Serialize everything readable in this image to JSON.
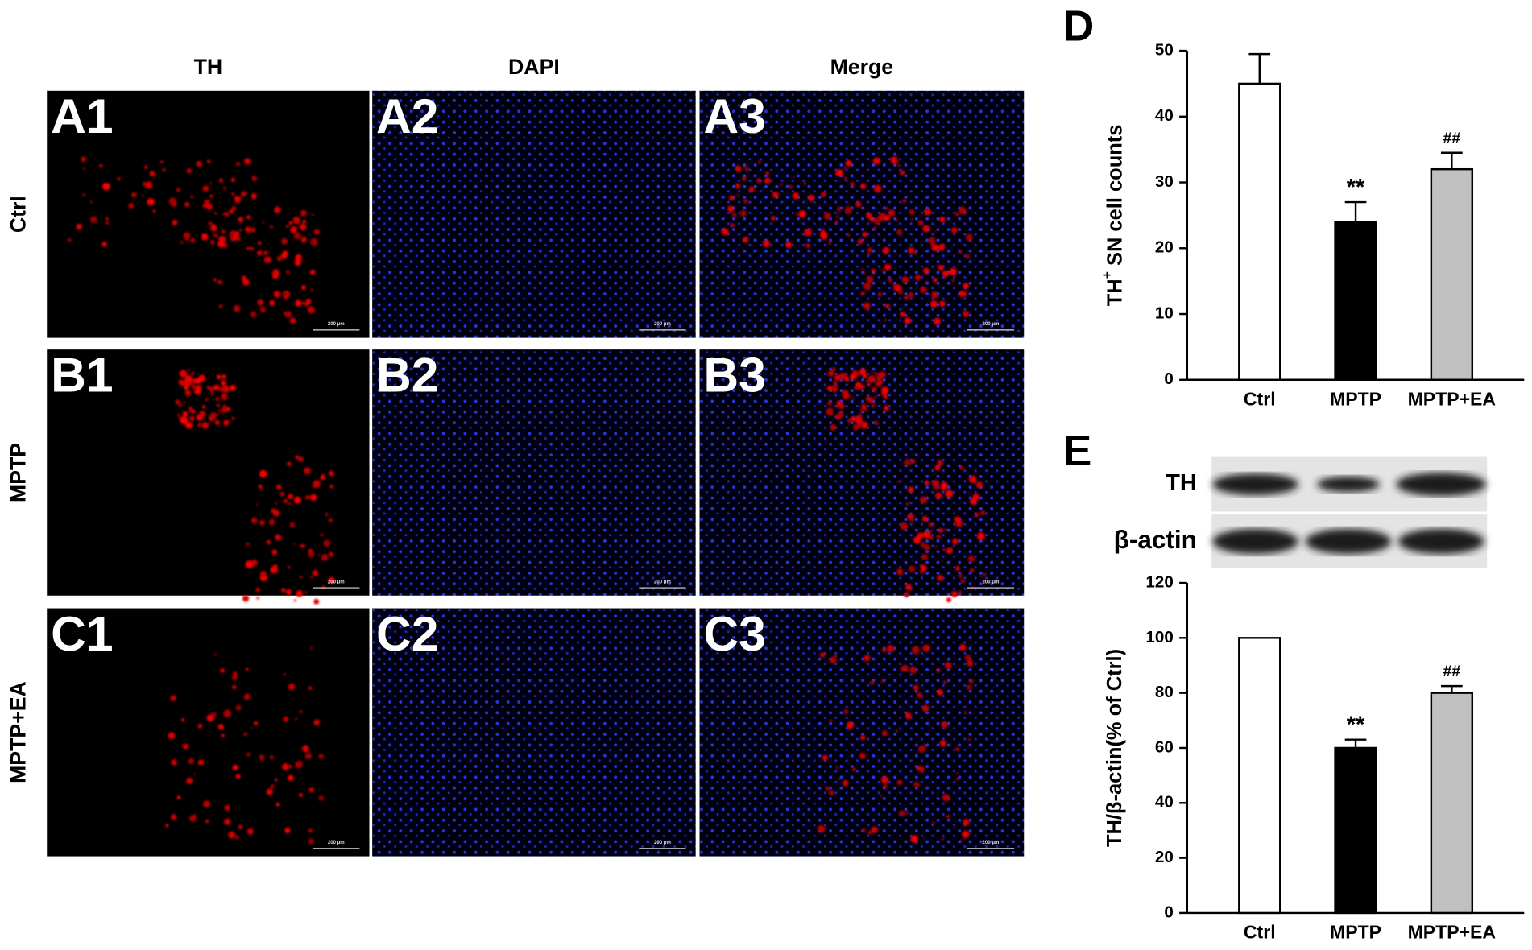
{
  "figure": {
    "column_headers": [
      "TH",
      "DAPI",
      "Merge"
    ],
    "row_labels": [
      "Ctrl",
      "MPTP",
      "MPTP+EA"
    ],
    "panel_labels": [
      [
        "A1",
        "A2",
        "A3"
      ],
      [
        "B1",
        "B2",
        "B3"
      ],
      [
        "C1",
        "C2",
        "C3"
      ]
    ],
    "scale_bar": "200 μm"
  },
  "chart_data": [
    {
      "type": "bar",
      "panel_label": "D",
      "ylabel": "TH",
      "ylabel_sup": "+",
      "ylabel_rest": " SN cell counts",
      "categories": [
        "Ctrl",
        "MPTP",
        "MPTP+EA"
      ],
      "values": [
        45,
        24,
        32
      ],
      "errors": [
        4.5,
        3,
        2.5
      ],
      "value_annotations": [
        null,
        "**",
        "##"
      ],
      "colors": [
        "#ffffff",
        "#000000",
        "#c0c0c0"
      ],
      "ylim": [
        0,
        50
      ],
      "yticks": [
        0,
        10,
        20,
        30,
        40,
        50
      ]
    },
    {
      "type": "bar",
      "panel_label": "E",
      "blot_labels": [
        "TH",
        "β-actin"
      ],
      "ylabel": "TH/β-actin(% of Ctrl)",
      "categories": [
        "Ctrl",
        "MPTP",
        "MPTP+EA"
      ],
      "values": [
        100,
        60,
        80
      ],
      "errors": [
        0,
        3,
        2.5
      ],
      "value_annotations": [
        null,
        "**",
        "##"
      ],
      "colors": [
        "#ffffff",
        "#000000",
        "#c0c0c0"
      ],
      "ylim": [
        0,
        120
      ],
      "yticks": [
        0,
        20,
        40,
        60,
        80,
        100,
        120
      ]
    }
  ]
}
